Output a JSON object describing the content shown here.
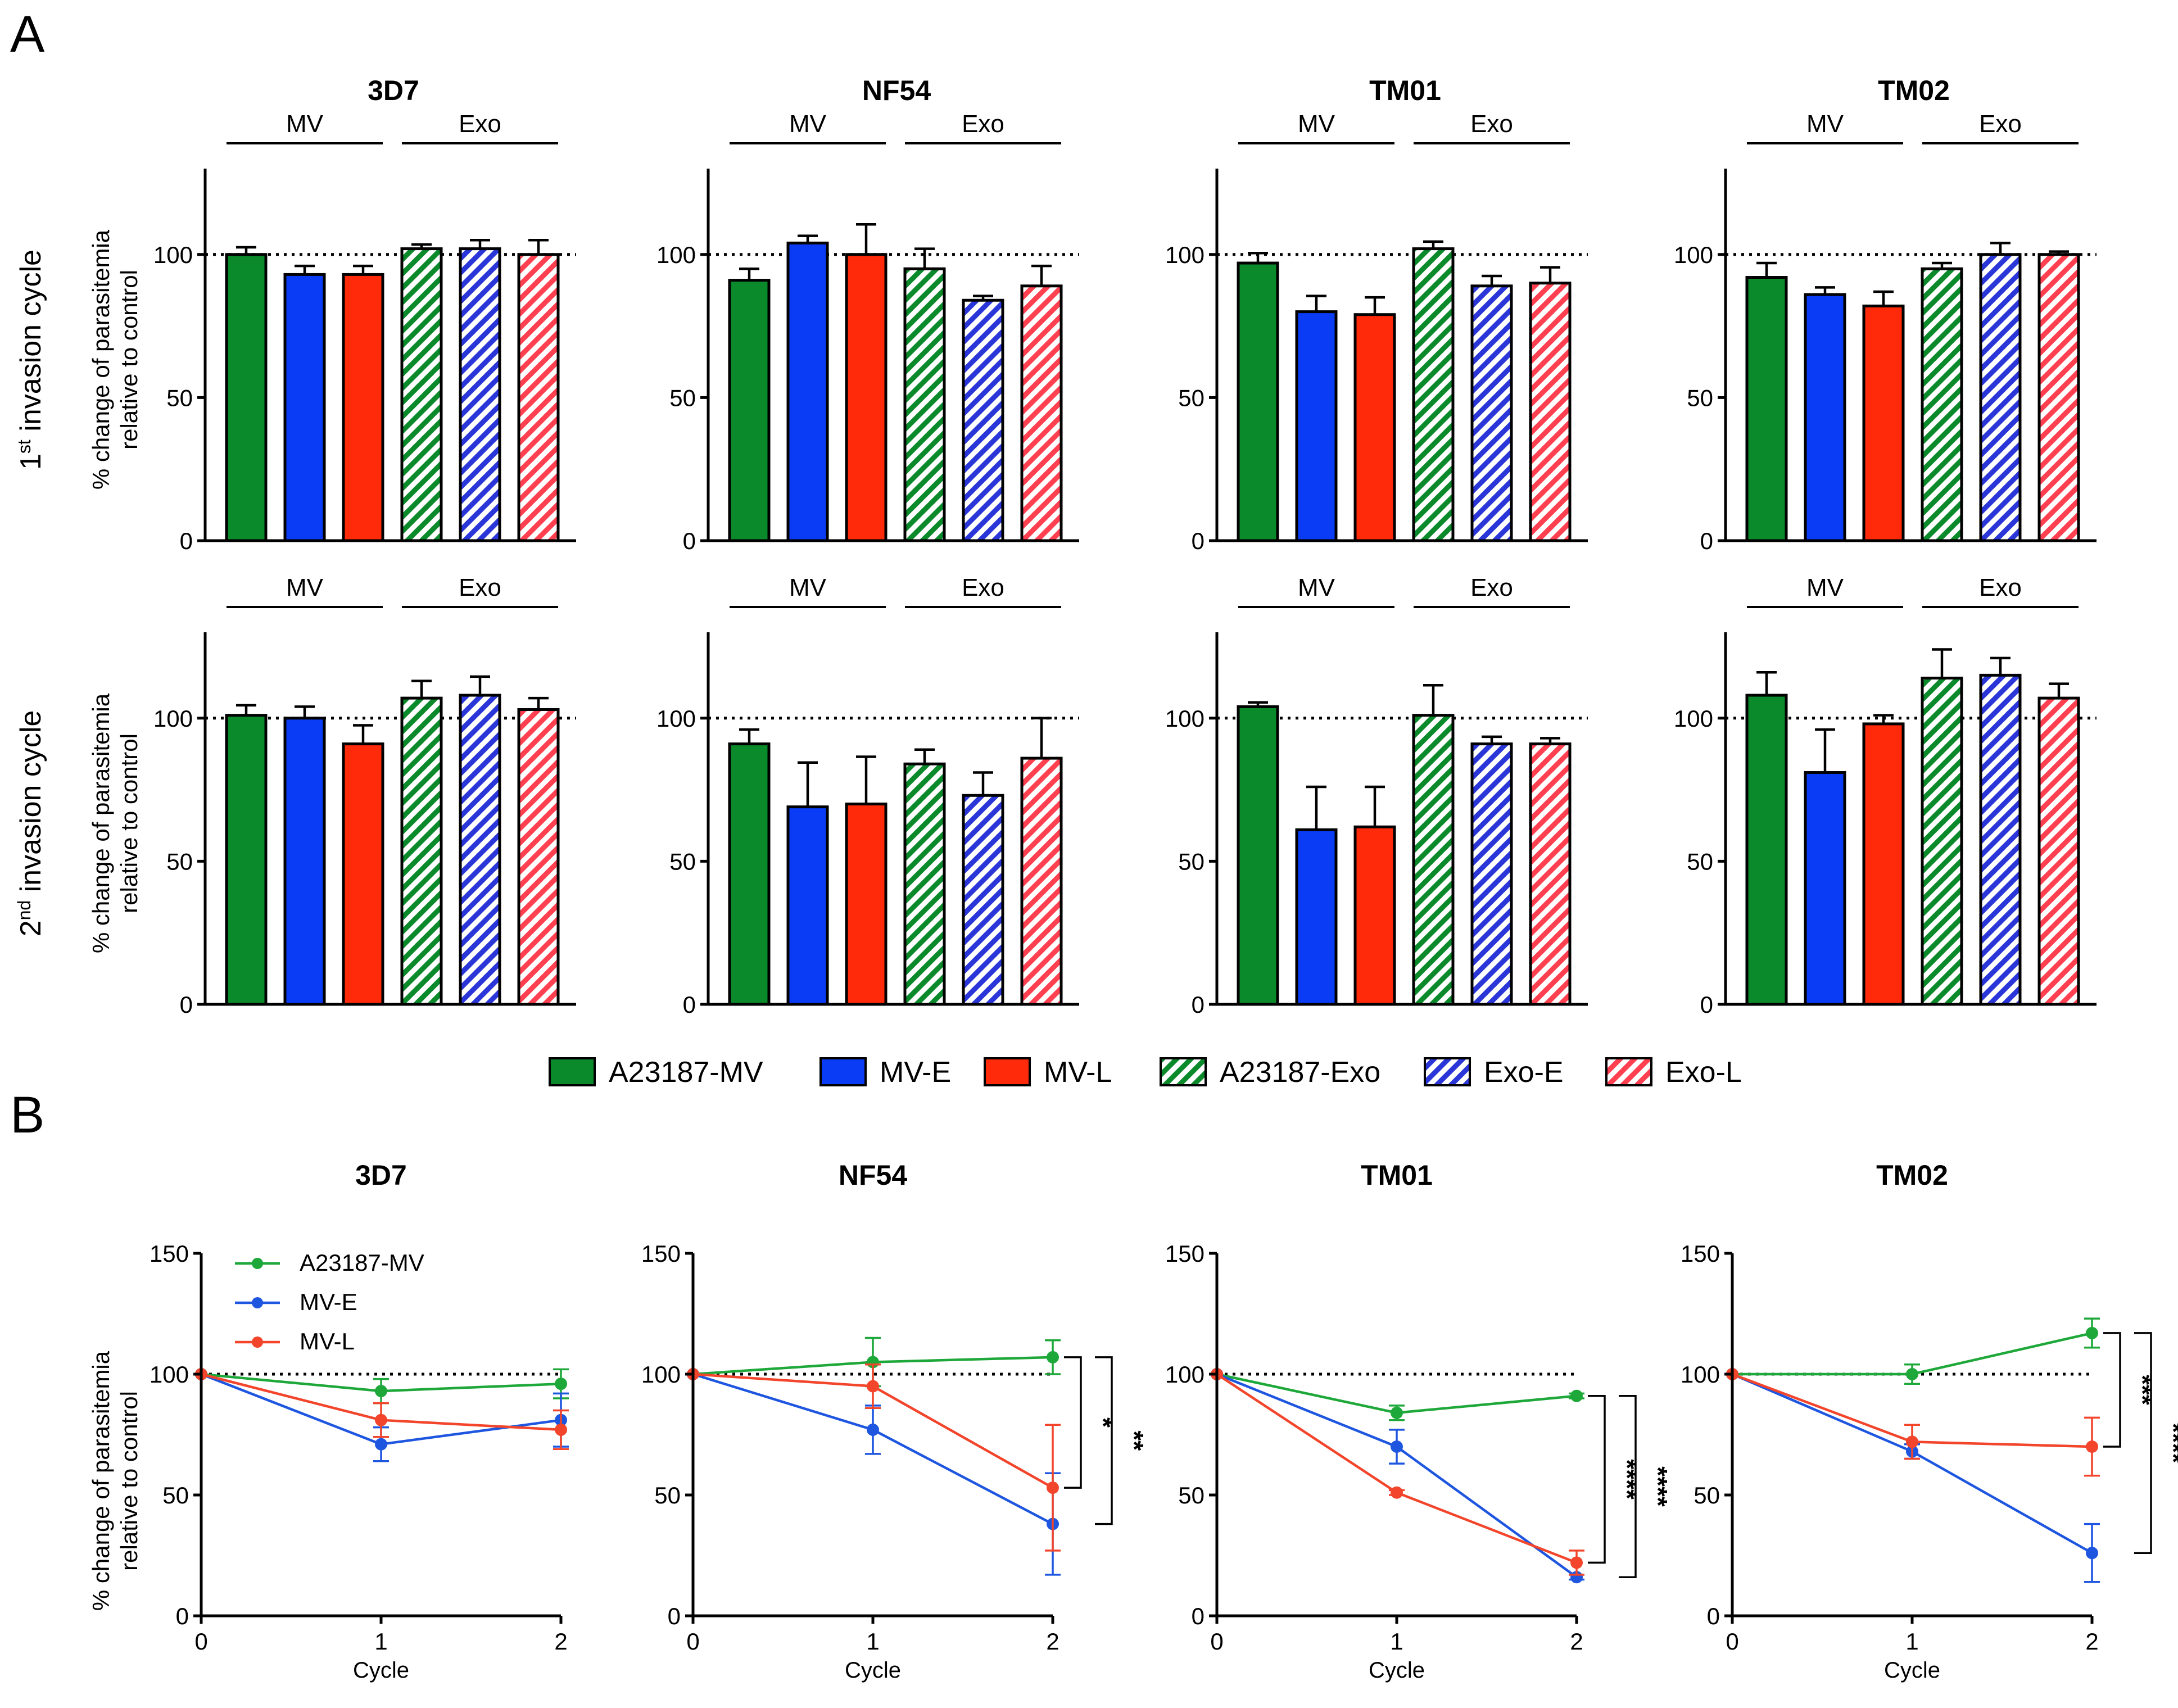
{
  "panel_labels": {
    "a": "A",
    "b": "B"
  },
  "row_labels": {
    "cycle1_base": "1",
    "cycle1_sup": "st",
    "cycle2_base": "2",
    "cycle2_sup": "nd",
    "suffix": " invasion cycle"
  },
  "ylabel_line1": "% change of parasitemia",
  "ylabel_line2": "relative to control",
  "group_labels": {
    "mv": "MV",
    "exo": "Exo"
  },
  "legend": [
    {
      "label": "A23187-MV",
      "color": "#0a8a2a",
      "hatch": false
    },
    {
      "label": "MV-E",
      "color": "#0a3cf5",
      "hatch": false
    },
    {
      "label": "MV-L",
      "color": "#ff2a0a",
      "hatch": false
    },
    {
      "label": "A23187-Exo",
      "color": "#0a8a2a",
      "hatch": true
    },
    {
      "label": "Exo-E",
      "color": "#2a36d8",
      "hatch": true
    },
    {
      "label": "Exo-L",
      "color": "#ff4050",
      "hatch": true
    }
  ],
  "chart_data": [
    {
      "type": "bar",
      "title": "3D7",
      "row": "1st invasion cycle",
      "categories": [
        "A23187-MV",
        "MV-E",
        "MV-L",
        "A23187-Exo",
        "Exo-E",
        "Exo-L"
      ],
      "values": [
        100,
        93,
        93,
        102,
        102,
        100
      ],
      "errors": [
        2.5,
        3,
        3,
        1.5,
        3,
        5
      ],
      "ylim": [
        0,
        130
      ],
      "yticks": [
        0,
        50,
        100
      ],
      "reference_line": 100
    },
    {
      "type": "bar",
      "title": "NF54",
      "row": "1st invasion cycle",
      "categories": [
        "A23187-MV",
        "MV-E",
        "MV-L",
        "A23187-Exo",
        "Exo-E",
        "Exo-L"
      ],
      "values": [
        91,
        104,
        100,
        95,
        84,
        89
      ],
      "errors": [
        4,
        2.5,
        10.5,
        7,
        1.5,
        7
      ],
      "ylim": [
        0,
        130
      ],
      "yticks": [
        0,
        50,
        100
      ],
      "reference_line": 100
    },
    {
      "type": "bar",
      "title": "TM01",
      "row": "1st invasion cycle",
      "categories": [
        "A23187-MV",
        "MV-E",
        "MV-L",
        "A23187-Exo",
        "Exo-E",
        "Exo-L"
      ],
      "values": [
        97,
        80,
        79,
        102,
        89,
        90
      ],
      "errors": [
        3.5,
        5.5,
        6,
        2.5,
        3.5,
        5.5
      ],
      "ylim": [
        0,
        130
      ],
      "yticks": [
        0,
        50,
        100
      ],
      "reference_line": 100
    },
    {
      "type": "bar",
      "title": "TM02",
      "row": "1st invasion cycle",
      "categories": [
        "A23187-MV",
        "MV-E",
        "MV-L",
        "A23187-Exo",
        "Exo-E",
        "Exo-L"
      ],
      "values": [
        92,
        86,
        82,
        95,
        100,
        100
      ],
      "errors": [
        5,
        2.5,
        5,
        2,
        4,
        1
      ],
      "ylim": [
        0,
        130
      ],
      "yticks": [
        0,
        50,
        100
      ],
      "reference_line": 100
    },
    {
      "type": "bar",
      "title": "3D7",
      "row": "2nd invasion cycle",
      "categories": [
        "A23187-MV",
        "MV-E",
        "MV-L",
        "A23187-Exo",
        "Exo-E",
        "Exo-L"
      ],
      "values": [
        101,
        100,
        91,
        107,
        108,
        103
      ],
      "errors": [
        3.5,
        4,
        6.5,
        6,
        6.5,
        4
      ],
      "ylim": [
        0,
        130
      ],
      "yticks": [
        0,
        50,
        100
      ],
      "reference_line": 100
    },
    {
      "type": "bar",
      "title": "NF54",
      "row": "2nd invasion cycle",
      "categories": [
        "A23187-MV",
        "MV-E",
        "MV-L",
        "A23187-Exo",
        "Exo-E",
        "Exo-L"
      ],
      "values": [
        91,
        69,
        70,
        84,
        73,
        86
      ],
      "errors": [
        5,
        15.5,
        16.5,
        5,
        8,
        14
      ],
      "ylim": [
        0,
        130
      ],
      "yticks": [
        0,
        50,
        100
      ],
      "reference_line": 100
    },
    {
      "type": "bar",
      "title": "TM01",
      "row": "2nd invasion cycle",
      "categories": [
        "A23187-MV",
        "MV-E",
        "MV-L",
        "A23187-Exo",
        "Exo-E",
        "Exo-L"
      ],
      "values": [
        104,
        61,
        62,
        101,
        91,
        91
      ],
      "errors": [
        1.5,
        15,
        14,
        10.5,
        2.5,
        2
      ],
      "ylim": [
        0,
        130
      ],
      "yticks": [
        0,
        50,
        100
      ],
      "reference_line": 100
    },
    {
      "type": "bar",
      "title": "TM02",
      "row": "2nd invasion cycle",
      "categories": [
        "A23187-MV",
        "MV-E",
        "MV-L",
        "A23187-Exo",
        "Exo-E",
        "Exo-L"
      ],
      "values": [
        108,
        81,
        98,
        114,
        115,
        107
      ],
      "errors": [
        8,
        15,
        3,
        10,
        6,
        5
      ],
      "ylim": [
        0,
        130
      ],
      "yticks": [
        0,
        50,
        100
      ],
      "reference_line": 100
    },
    {
      "type": "line",
      "title": "3D7",
      "xlabel": "Cycle",
      "ylabel": "% change of parasitemia relative to control",
      "x": [
        0,
        1,
        2
      ],
      "xlim": [
        0,
        2
      ],
      "ylim": [
        0,
        150
      ],
      "yticks": [
        0,
        50,
        100,
        150
      ],
      "reference_line": 100,
      "legend_location": "top-left",
      "series": [
        {
          "name": "A23187-MV",
          "values": [
            100,
            93,
            96
          ],
          "errors": [
            0,
            5,
            6
          ]
        },
        {
          "name": "MV-E",
          "values": [
            100,
            71,
            81
          ],
          "errors": [
            0,
            7,
            11
          ]
        },
        {
          "name": "MV-L",
          "values": [
            100,
            81,
            77
          ],
          "errors": [
            0,
            7,
            8
          ]
        }
      ],
      "significance": []
    },
    {
      "type": "line",
      "title": "NF54",
      "xlabel": "Cycle",
      "x": [
        0,
        1,
        2
      ],
      "xlim": [
        0,
        2
      ],
      "ylim": [
        0,
        150
      ],
      "yticks": [
        0,
        50,
        100,
        150
      ],
      "reference_line": 100,
      "series": [
        {
          "name": "A23187-MV",
          "values": [
            100,
            105,
            107
          ],
          "errors": [
            0,
            10,
            7
          ]
        },
        {
          "name": "MV-E",
          "values": [
            100,
            77,
            38
          ],
          "errors": [
            0,
            10,
            21
          ]
        },
        {
          "name": "MV-L",
          "values": [
            100,
            95,
            53
          ],
          "errors": [
            0,
            9,
            26
          ]
        }
      ],
      "significance": [
        {
          "label": "*",
          "from": 107,
          "to": 53
        },
        {
          "label": "**",
          "from": 107,
          "to": 38
        }
      ]
    },
    {
      "type": "line",
      "title": "TM01",
      "xlabel": "Cycle",
      "x": [
        0,
        1,
        2
      ],
      "xlim": [
        0,
        2
      ],
      "ylim": [
        0,
        150
      ],
      "yticks": [
        0,
        50,
        100,
        150
      ],
      "reference_line": 100,
      "series": [
        {
          "name": "A23187-MV",
          "values": [
            100,
            84,
            91
          ],
          "errors": [
            0,
            3,
            1
          ]
        },
        {
          "name": "MV-E",
          "values": [
            100,
            70,
            16
          ],
          "errors": [
            0,
            7,
            1
          ]
        },
        {
          "name": "MV-L",
          "values": [
            100,
            51,
            22
          ],
          "errors": [
            0,
            1,
            5
          ]
        }
      ],
      "significance": [
        {
          "label": "****",
          "from": 91,
          "to": 22
        },
        {
          "label": "****",
          "from": 91,
          "to": 16
        }
      ]
    },
    {
      "type": "line",
      "title": "TM02",
      "xlabel": "Cycle",
      "x": [
        0,
        1,
        2
      ],
      "xlim": [
        0,
        2
      ],
      "ylim": [
        0,
        150
      ],
      "yticks": [
        0,
        50,
        100,
        150
      ],
      "reference_line": 100,
      "series": [
        {
          "name": "A23187-MV",
          "values": [
            100,
            100,
            117
          ],
          "errors": [
            0,
            4,
            6
          ]
        },
        {
          "name": "MV-E",
          "values": [
            100,
            68,
            26
          ],
          "errors": [
            0,
            3,
            12
          ]
        },
        {
          "name": "MV-L",
          "values": [
            100,
            72,
            70
          ],
          "errors": [
            0,
            7,
            12
          ]
        }
      ],
      "significance": [
        {
          "label": "***",
          "from": 117,
          "to": 70
        },
        {
          "label": "****",
          "from": 117,
          "to": 26
        }
      ]
    }
  ],
  "line_colors": [
    "#1fa83a",
    "#1e56e0",
    "#f2452b"
  ]
}
